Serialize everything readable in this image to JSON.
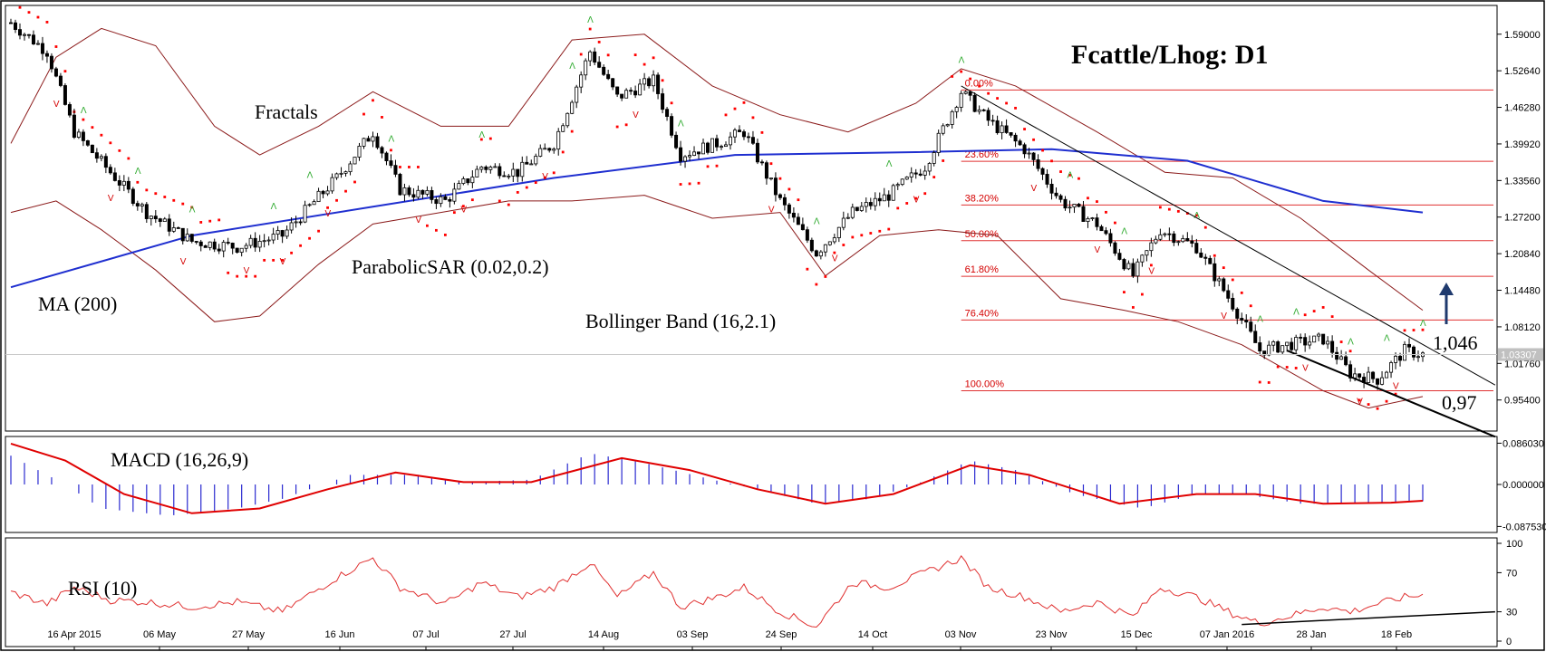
{
  "title": "Fcattle/Lhog: D1",
  "colors": {
    "bullish": "#ffffff",
    "bearish": "#000000",
    "ma": "#1f2fd0",
    "bollinger": "#8b1a1a",
    "sar": "#ff0000",
    "fractal_up": "#2eaa2e",
    "fractal_down": "#d40000",
    "fib": "#e03030",
    "macd_hist": "#2a2ad0",
    "macd_signal": "#e00000",
    "rsi": "#e03030",
    "frame": "#000000",
    "grid_text": "#000000"
  },
  "annotations": {
    "fractals": "Fractals",
    "ma": "MA (200)",
    "sar": "ParabolicSAR (0.02,0.2)",
    "bollinger": "Bollinger Band (16,2.1)",
    "resistance_value": "1,046",
    "support_value": "0,97"
  },
  "chart_data": [
    {
      "type": "candlestick",
      "title": "Fcattle/Lhog: D1",
      "x_labels": [
        "16 Apr 2015",
        "06 May",
        "27 May",
        "16 Jun",
        "07 Jul",
        "27 Jul",
        "14 Aug",
        "03 Sep",
        "24 Sep",
        "14 Oct",
        "03 Nov",
        "23 Nov",
        "15 Dec",
        "07 Jan 2016",
        "28 Jan",
        "18 Feb"
      ],
      "y_ticks": [
        "1.59000",
        "1.52640",
        "1.46280",
        "1.39920",
        "1.33560",
        "1.27200",
        "1.20840",
        "1.14480",
        "1.08120",
        "1.01760",
        "0.95400"
      ],
      "ylim": [
        0.9,
        1.64
      ],
      "last_price": "1.03307",
      "close_path": [
        {
          "i": 0,
          "v": 1.61
        },
        {
          "i": 8,
          "v": 1.56
        },
        {
          "i": 14,
          "v": 1.42
        },
        {
          "i": 22,
          "v": 1.35
        },
        {
          "i": 30,
          "v": 1.28
        },
        {
          "i": 40,
          "v": 1.23
        },
        {
          "i": 50,
          "v": 1.22
        },
        {
          "i": 60,
          "v": 1.24
        },
        {
          "i": 72,
          "v": 1.34
        },
        {
          "i": 80,
          "v": 1.42
        },
        {
          "i": 86,
          "v": 1.32
        },
        {
          "i": 96,
          "v": 1.3
        },
        {
          "i": 104,
          "v": 1.36
        },
        {
          "i": 112,
          "v": 1.35
        },
        {
          "i": 120,
          "v": 1.4
        },
        {
          "i": 128,
          "v": 1.56
        },
        {
          "i": 134,
          "v": 1.48
        },
        {
          "i": 142,
          "v": 1.51
        },
        {
          "i": 148,
          "v": 1.38
        },
        {
          "i": 156,
          "v": 1.4
        },
        {
          "i": 162,
          "v": 1.42
        },
        {
          "i": 170,
          "v": 1.3
        },
        {
          "i": 178,
          "v": 1.21
        },
        {
          "i": 186,
          "v": 1.28
        },
        {
          "i": 194,
          "v": 1.31
        },
        {
          "i": 202,
          "v": 1.36
        },
        {
          "i": 210,
          "v": 1.49
        },
        {
          "i": 216,
          "v": 1.44
        },
        {
          "i": 224,
          "v": 1.39
        },
        {
          "i": 232,
          "v": 1.3
        },
        {
          "i": 240,
          "v": 1.26
        },
        {
          "i": 248,
          "v": 1.17
        },
        {
          "i": 254,
          "v": 1.25
        },
        {
          "i": 262,
          "v": 1.22
        },
        {
          "i": 270,
          "v": 1.12
        },
        {
          "i": 276,
          "v": 1.04
        },
        {
          "i": 282,
          "v": 1.05
        },
        {
          "i": 290,
          "v": 1.06
        },
        {
          "i": 296,
          "v": 1.0
        },
        {
          "i": 302,
          "v": 0.99
        },
        {
          "i": 308,
          "v": 1.04
        },
        {
          "i": 312,
          "v": 1.033
        }
      ],
      "bar_count": 313,
      "ma_200": [
        {
          "i": 0,
          "v": 1.15
        },
        {
          "i": 40,
          "v": 1.24
        },
        {
          "i": 80,
          "v": 1.29
        },
        {
          "i": 120,
          "v": 1.34
        },
        {
          "i": 160,
          "v": 1.38
        },
        {
          "i": 200,
          "v": 1.385
        },
        {
          "i": 230,
          "v": 1.39
        },
        {
          "i": 260,
          "v": 1.37
        },
        {
          "i": 290,
          "v": 1.3
        },
        {
          "i": 312,
          "v": 1.28
        }
      ],
      "bollinger_upper": [
        {
          "i": 0,
          "v": 1.4
        },
        {
          "i": 10,
          "v": 1.55
        },
        {
          "i": 20,
          "v": 1.6
        },
        {
          "i": 32,
          "v": 1.57
        },
        {
          "i": 45,
          "v": 1.43
        },
        {
          "i": 55,
          "v": 1.38
        },
        {
          "i": 68,
          "v": 1.43
        },
        {
          "i": 80,
          "v": 1.49
        },
        {
          "i": 95,
          "v": 1.43
        },
        {
          "i": 110,
          "v": 1.43
        },
        {
          "i": 124,
          "v": 1.58
        },
        {
          "i": 140,
          "v": 1.59
        },
        {
          "i": 155,
          "v": 1.5
        },
        {
          "i": 170,
          "v": 1.45
        },
        {
          "i": 185,
          "v": 1.42
        },
        {
          "i": 200,
          "v": 1.47
        },
        {
          "i": 210,
          "v": 1.53
        },
        {
          "i": 222,
          "v": 1.5
        },
        {
          "i": 240,
          "v": 1.42
        },
        {
          "i": 255,
          "v": 1.35
        },
        {
          "i": 270,
          "v": 1.34
        },
        {
          "i": 285,
          "v": 1.27
        },
        {
          "i": 300,
          "v": 1.18
        },
        {
          "i": 312,
          "v": 1.11
        }
      ],
      "bollinger_lower": [
        {
          "i": 0,
          "v": 1.28
        },
        {
          "i": 10,
          "v": 1.3
        },
        {
          "i": 20,
          "v": 1.25
        },
        {
          "i": 32,
          "v": 1.18
        },
        {
          "i": 45,
          "v": 1.09
        },
        {
          "i": 55,
          "v": 1.1
        },
        {
          "i": 68,
          "v": 1.19
        },
        {
          "i": 80,
          "v": 1.26
        },
        {
          "i": 95,
          "v": 1.28
        },
        {
          "i": 110,
          "v": 1.3
        },
        {
          "i": 124,
          "v": 1.3
        },
        {
          "i": 140,
          "v": 1.31
        },
        {
          "i": 155,
          "v": 1.27
        },
        {
          "i": 170,
          "v": 1.28
        },
        {
          "i": 180,
          "v": 1.17
        },
        {
          "i": 192,
          "v": 1.24
        },
        {
          "i": 205,
          "v": 1.25
        },
        {
          "i": 218,
          "v": 1.24
        },
        {
          "i": 232,
          "v": 1.13
        },
        {
          "i": 246,
          "v": 1.11
        },
        {
          "i": 258,
          "v": 1.09
        },
        {
          "i": 272,
          "v": 1.05
        },
        {
          "i": 290,
          "v": 0.97
        },
        {
          "i": 300,
          "v": 0.94
        },
        {
          "i": 312,
          "v": 0.96
        }
      ],
      "fibonacci": {
        "start_index": 210,
        "end_index": 312,
        "levels": [
          {
            "label": "0.00%",
            "value": 1.493
          },
          {
            "label": "23.60%",
            "value": 1.369
          },
          {
            "label": "38.20%",
            "value": 1.293
          },
          {
            "label": "50.00%",
            "value": 1.231
          },
          {
            "label": "61.80%",
            "value": 1.169
          },
          {
            "label": "76.40%",
            "value": 1.093
          },
          {
            "label": "100.00%",
            "value": 0.97
          }
        ]
      },
      "resistance_line": {
        "from": {
          "i": 210,
          "v": 1.5
        },
        "to": {
          "i": 328,
          "v": 0.98
        },
        "label": "1,046"
      },
      "support_line": {
        "from": {
          "i": 282,
          "v": 1.04
        },
        "to": {
          "i": 328,
          "v": 0.89
        },
        "label": "0,97"
      }
    },
    {
      "type": "histogram+line",
      "title": "MACD (16,26,9)",
      "y_ticks": [
        "0.086030",
        "0.000000",
        "-0.087530"
      ],
      "ylim": [
        -0.1,
        0.1
      ],
      "histogram": [
        {
          "i": 0,
          "v": 0.06
        },
        {
          "i": 12,
          "v": 0.0
        },
        {
          "i": 20,
          "v": -0.05
        },
        {
          "i": 35,
          "v": -0.065
        },
        {
          "i": 50,
          "v": -0.05
        },
        {
          "i": 60,
          "v": -0.03
        },
        {
          "i": 75,
          "v": 0.02
        },
        {
          "i": 90,
          "v": 0.02
        },
        {
          "i": 100,
          "v": 0.005
        },
        {
          "i": 115,
          "v": 0.01
        },
        {
          "i": 128,
          "v": 0.065
        },
        {
          "i": 140,
          "v": 0.045
        },
        {
          "i": 155,
          "v": 0.01
        },
        {
          "i": 165,
          "v": -0.01
        },
        {
          "i": 178,
          "v": -0.04
        },
        {
          "i": 190,
          "v": -0.03
        },
        {
          "i": 200,
          "v": 0.0
        },
        {
          "i": 212,
          "v": 0.05
        },
        {
          "i": 222,
          "v": 0.03
        },
        {
          "i": 235,
          "v": -0.02
        },
        {
          "i": 250,
          "v": -0.05
        },
        {
          "i": 262,
          "v": -0.02
        },
        {
          "i": 272,
          "v": -0.02
        },
        {
          "i": 285,
          "v": -0.04
        },
        {
          "i": 300,
          "v": -0.04
        },
        {
          "i": 312,
          "v": -0.035
        }
      ],
      "signal": [
        {
          "i": 0,
          "v": 0.085
        },
        {
          "i": 12,
          "v": 0.05
        },
        {
          "i": 25,
          "v": -0.02
        },
        {
          "i": 40,
          "v": -0.06
        },
        {
          "i": 55,
          "v": -0.05
        },
        {
          "i": 70,
          "v": -0.01
        },
        {
          "i": 85,
          "v": 0.025
        },
        {
          "i": 100,
          "v": 0.005
        },
        {
          "i": 115,
          "v": 0.005
        },
        {
          "i": 135,
          "v": 0.055
        },
        {
          "i": 150,
          "v": 0.03
        },
        {
          "i": 165,
          "v": -0.01
        },
        {
          "i": 180,
          "v": -0.04
        },
        {
          "i": 195,
          "v": -0.02
        },
        {
          "i": 212,
          "v": 0.04
        },
        {
          "i": 225,
          "v": 0.02
        },
        {
          "i": 245,
          "v": -0.04
        },
        {
          "i": 262,
          "v": -0.02
        },
        {
          "i": 275,
          "v": -0.02
        },
        {
          "i": 290,
          "v": -0.04
        },
        {
          "i": 305,
          "v": -0.038
        },
        {
          "i": 312,
          "v": -0.034
        }
      ]
    },
    {
      "type": "line",
      "title": "RSI (10)",
      "y_ticks": [
        "100",
        "70",
        "30",
        "0"
      ],
      "ylim": [
        0,
        100
      ],
      "values": [
        {
          "i": 0,
          "v": 50
        },
        {
          "i": 8,
          "v": 38
        },
        {
          "i": 14,
          "v": 55
        },
        {
          "i": 22,
          "v": 42
        },
        {
          "i": 30,
          "v": 40
        },
        {
          "i": 40,
          "v": 35
        },
        {
          "i": 50,
          "v": 40
        },
        {
          "i": 60,
          "v": 30
        },
        {
          "i": 72,
          "v": 65
        },
        {
          "i": 80,
          "v": 85
        },
        {
          "i": 86,
          "v": 55
        },
        {
          "i": 96,
          "v": 38
        },
        {
          "i": 104,
          "v": 60
        },
        {
          "i": 112,
          "v": 45
        },
        {
          "i": 120,
          "v": 55
        },
        {
          "i": 128,
          "v": 80
        },
        {
          "i": 134,
          "v": 45
        },
        {
          "i": 142,
          "v": 70
        },
        {
          "i": 148,
          "v": 35
        },
        {
          "i": 156,
          "v": 45
        },
        {
          "i": 162,
          "v": 55
        },
        {
          "i": 170,
          "v": 30
        },
        {
          "i": 178,
          "v": 15
        },
        {
          "i": 186,
          "v": 60
        },
        {
          "i": 194,
          "v": 55
        },
        {
          "i": 202,
          "v": 70
        },
        {
          "i": 210,
          "v": 85
        },
        {
          "i": 216,
          "v": 55
        },
        {
          "i": 224,
          "v": 45
        },
        {
          "i": 232,
          "v": 30
        },
        {
          "i": 240,
          "v": 40
        },
        {
          "i": 248,
          "v": 25
        },
        {
          "i": 254,
          "v": 55
        },
        {
          "i": 262,
          "v": 45
        },
        {
          "i": 270,
          "v": 28
        },
        {
          "i": 276,
          "v": 18
        },
        {
          "i": 282,
          "v": 25
        },
        {
          "i": 290,
          "v": 35
        },
        {
          "i": 296,
          "v": 30
        },
        {
          "i": 302,
          "v": 38
        },
        {
          "i": 308,
          "v": 45
        },
        {
          "i": 312,
          "v": 47
        }
      ],
      "trend_line": {
        "from": {
          "i": 272,
          "v": 17
        },
        "to": {
          "i": 328,
          "v": 30
        }
      }
    }
  ]
}
